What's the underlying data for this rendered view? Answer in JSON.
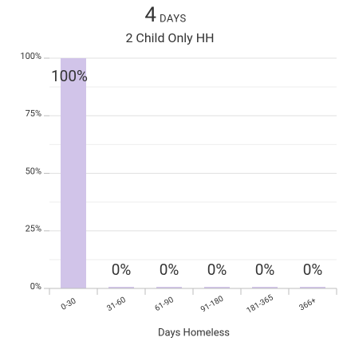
{
  "chart_data": {
    "type": "bar",
    "title": "4",
    "title_unit": "DAYS",
    "subtitle": "2 Child Only HH",
    "x_label": "Days Homeless",
    "categories": [
      "0-30",
      "31-60",
      "61-90",
      "91-180",
      "181-365",
      "366+"
    ],
    "values": [
      100,
      0,
      0,
      0,
      0,
      0
    ],
    "value_labels": [
      "100%",
      "0%",
      "0%",
      "0%",
      "0%",
      "0%"
    ],
    "color": "#d1c4e9",
    "ylim": [
      0,
      100
    ],
    "yticks": [
      {
        "value": 0,
        "label": "0%"
      },
      {
        "value": 25,
        "label": "25%"
      },
      {
        "value": 50,
        "label": "50%"
      },
      {
        "value": 75,
        "label": "75%"
      },
      {
        "value": 100,
        "label": "100%"
      }
    ],
    "minor_yticks": [
      12.5,
      37.5,
      62.5,
      87.5
    ],
    "grid": true
  }
}
